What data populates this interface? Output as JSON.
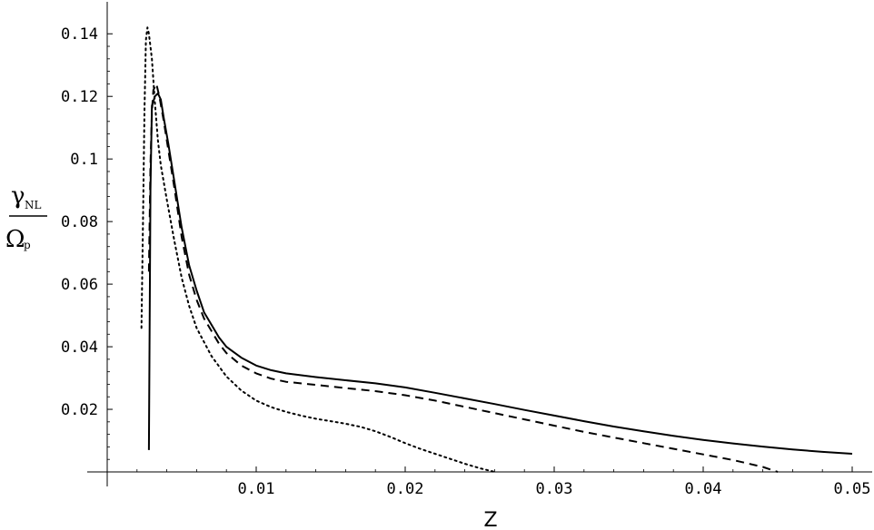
{
  "chart_data": {
    "type": "line",
    "title": "",
    "xlabel": "Z",
    "ylabel": {
      "numerator": "γ",
      "numerator_sub": "NL",
      "denominator": "Ω",
      "denominator_sub": "p"
    },
    "xlim": [
      0.0,
      0.05
    ],
    "ylim": [
      0.0,
      0.145
    ],
    "x_ticks": [
      0.01,
      0.02,
      0.03,
      0.04,
      0.05
    ],
    "x_tick_labels": [
      "0.01",
      "0.02",
      "0.03",
      "0.04",
      "0.05"
    ],
    "y_ticks": [
      0.02,
      0.04,
      0.06,
      0.08,
      0.1,
      0.12,
      0.14
    ],
    "y_tick_labels": [
      "0.02",
      "0.04",
      "0.06",
      "0.08",
      "0.1",
      "0.12",
      "0.14"
    ],
    "grid": false,
    "legend": "none",
    "series": [
      {
        "style": "solid",
        "color": "#000000",
        "x": [
          0.0028,
          0.0029,
          0.003,
          0.0032,
          0.0034,
          0.0036,
          0.0038,
          0.0041,
          0.0045,
          0.005,
          0.0055,
          0.006,
          0.0065,
          0.007,
          0.0075,
          0.008,
          0.009,
          0.01,
          0.011,
          0.012,
          0.014,
          0.016,
          0.018,
          0.02,
          0.022,
          0.024,
          0.026,
          0.028,
          0.03,
          0.032,
          0.034,
          0.036,
          0.038,
          0.04,
          0.042,
          0.044,
          0.046,
          0.048,
          0.05
        ],
        "y": [
          0.007,
          0.09,
          0.117,
          0.12,
          0.121,
          0.119,
          0.113,
          0.105,
          0.093,
          0.078,
          0.066,
          0.058,
          0.051,
          0.047,
          0.043,
          0.04,
          0.0365,
          0.034,
          0.0325,
          0.0315,
          0.0303,
          0.0293,
          0.0283,
          0.027,
          0.0253,
          0.0235,
          0.0217,
          0.0198,
          0.018,
          0.0162,
          0.0145,
          0.013,
          0.0115,
          0.0102,
          0.0091,
          0.0081,
          0.0072,
          0.0064,
          0.0058
        ]
      },
      {
        "style": "dashed",
        "color": "#000000",
        "x": [
          0.0028,
          0.0029,
          0.003,
          0.0031,
          0.0033,
          0.0035,
          0.0038,
          0.0041,
          0.0045,
          0.005,
          0.0055,
          0.006,
          0.0065,
          0.007,
          0.0075,
          0.008,
          0.009,
          0.01,
          0.011,
          0.012,
          0.014,
          0.016,
          0.018,
          0.02,
          0.022,
          0.024,
          0.026,
          0.028,
          0.03,
          0.032,
          0.034,
          0.036,
          0.038,
          0.04,
          0.042,
          0.044,
          0.045
        ],
        "y": [
          0.064,
          0.098,
          0.115,
          0.122,
          0.124,
          0.12,
          0.112,
          0.103,
          0.091,
          0.075,
          0.063,
          0.055,
          0.049,
          0.045,
          0.041,
          0.038,
          0.034,
          0.0315,
          0.0298,
          0.0288,
          0.0278,
          0.0268,
          0.0258,
          0.0245,
          0.0228,
          0.0208,
          0.0188,
          0.0168,
          0.0148,
          0.0128,
          0.011,
          0.0092,
          0.0074,
          0.0056,
          0.0038,
          0.0016,
          0.0
        ]
      },
      {
        "style": "dotted",
        "color": "#000000",
        "x": [
          0.0023,
          0.0024,
          0.0025,
          0.0026,
          0.0027,
          0.0028,
          0.003,
          0.0032,
          0.0034,
          0.0036,
          0.004,
          0.0045,
          0.005,
          0.0055,
          0.006,
          0.007,
          0.008,
          0.009,
          0.01,
          0.011,
          0.012,
          0.013,
          0.014,
          0.015,
          0.016,
          0.017,
          0.018,
          0.019,
          0.02,
          0.021,
          0.022,
          0.023,
          0.024,
          0.025,
          0.026
        ],
        "y": [
          0.046,
          0.08,
          0.115,
          0.138,
          0.142,
          0.14,
          0.132,
          0.118,
          0.106,
          0.098,
          0.087,
          0.074,
          0.062,
          0.053,
          0.046,
          0.037,
          0.0305,
          0.026,
          0.0228,
          0.0207,
          0.0192,
          0.018,
          0.017,
          0.0162,
          0.0154,
          0.0144,
          0.013,
          0.0112,
          0.0092,
          0.0074,
          0.0058,
          0.0042,
          0.0026,
          0.0012,
          0.0
        ]
      }
    ]
  }
}
